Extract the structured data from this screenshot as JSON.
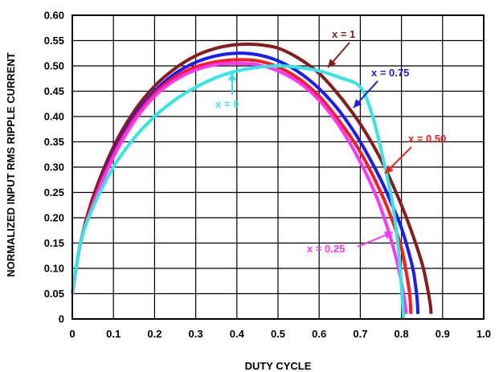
{
  "chart_data": {
    "type": "line",
    "title": "",
    "xlabel": "DUTY CYCLE",
    "ylabel": "NORMALIZED INPUT RMS RIPPLE CURRENT",
    "xlim": [
      0,
      1.0
    ],
    "ylim": [
      0,
      0.6
    ],
    "grid": true,
    "x_ticks": [
      "0",
      "0.1",
      "0.2",
      "0.3",
      "0.4",
      "0.5",
      "0.6",
      "0.7",
      "0.8",
      "0.9",
      "1.0"
    ],
    "y_ticks": [
      "0",
      "0.05",
      "0.10",
      "0.15",
      "0.20",
      "0.25",
      "0.30",
      "0.35",
      "0.40",
      "0.45",
      "0.50",
      "0.55",
      "0.60"
    ],
    "series": [
      {
        "name": "x = 1",
        "color": "#8b1a1a",
        "x": [
          0,
          0.02,
          0.05,
          0.1,
          0.15,
          0.2,
          0.25,
          0.3,
          0.35,
          0.4,
          0.45,
          0.5,
          0.55,
          0.6,
          0.65,
          0.7,
          0.75,
          0.8,
          0.83,
          0.85,
          0.86,
          0.87,
          0.872
        ],
        "y": [
          0.05,
          0.15,
          0.24,
          0.34,
          0.41,
          0.46,
          0.495,
          0.52,
          0.535,
          0.542,
          0.542,
          0.535,
          0.515,
          0.485,
          0.44,
          0.385,
          0.315,
          0.225,
          0.16,
          0.11,
          0.075,
          0.03,
          0.01
        ]
      },
      {
        "name": "x = 0.75",
        "color": "#1a1aff",
        "x": [
          0,
          0.02,
          0.05,
          0.1,
          0.15,
          0.2,
          0.25,
          0.3,
          0.35,
          0.4,
          0.45,
          0.5,
          0.55,
          0.6,
          0.65,
          0.7,
          0.75,
          0.78,
          0.8,
          0.82,
          0.83,
          0.838,
          0.84
        ],
        "y": [
          0.05,
          0.15,
          0.23,
          0.33,
          0.4,
          0.45,
          0.485,
          0.507,
          0.52,
          0.525,
          0.522,
          0.51,
          0.488,
          0.455,
          0.41,
          0.35,
          0.275,
          0.22,
          0.18,
          0.125,
          0.09,
          0.04,
          0.01
        ]
      },
      {
        "name": "x = 0.50",
        "color": "#ff1a1a",
        "x": [
          0,
          0.02,
          0.05,
          0.1,
          0.15,
          0.2,
          0.25,
          0.3,
          0.35,
          0.4,
          0.45,
          0.5,
          0.55,
          0.6,
          0.65,
          0.7,
          0.75,
          0.78,
          0.8,
          0.81,
          0.82,
          0.823
        ],
        "y": [
          0.05,
          0.15,
          0.23,
          0.325,
          0.395,
          0.445,
          0.478,
          0.498,
          0.508,
          0.512,
          0.51,
          0.498,
          0.475,
          0.44,
          0.39,
          0.33,
          0.25,
          0.19,
          0.14,
          0.1,
          0.05,
          0.01
        ]
      },
      {
        "name": "x = 0.25",
        "color": "#ff33ff",
        "x": [
          0,
          0.02,
          0.05,
          0.1,
          0.15,
          0.2,
          0.25,
          0.3,
          0.35,
          0.4,
          0.45,
          0.5,
          0.55,
          0.6,
          0.65,
          0.7,
          0.74,
          0.77,
          0.79,
          0.805,
          0.812
        ],
        "y": [
          0.05,
          0.15,
          0.225,
          0.32,
          0.39,
          0.44,
          0.472,
          0.492,
          0.503,
          0.505,
          0.502,
          0.49,
          0.468,
          0.432,
          0.38,
          0.31,
          0.24,
          0.17,
          0.11,
          0.05,
          0.01
        ]
      },
      {
        "name": "x = 0",
        "color": "#33e6e6",
        "x": [
          0,
          0.02,
          0.05,
          0.1,
          0.15,
          0.2,
          0.25,
          0.3,
          0.35,
          0.4,
          0.45,
          0.5,
          0.55,
          0.6,
          0.65,
          0.7,
          0.73,
          0.76,
          0.78,
          0.795,
          0.805
        ],
        "y": [
          0.05,
          0.15,
          0.22,
          0.3,
          0.357,
          0.4,
          0.433,
          0.458,
          0.477,
          0.49,
          0.497,
          0.5,
          0.497,
          0.49,
          0.477,
          0.458,
          0.4,
          0.3,
          0.22,
          0.12,
          0.0
        ]
      }
    ],
    "annotations": [
      {
        "text": "x = 1",
        "color": "#8b1a1a"
      },
      {
        "text": "x = 0.75",
        "color": "#1a1aff"
      },
      {
        "text": "x = 0.50",
        "color": "#ff1a1a"
      },
      {
        "text": "x = 0.25",
        "color": "#ff33ff"
      },
      {
        "text": "x = 0",
        "color": "#33e6e6"
      }
    ]
  }
}
